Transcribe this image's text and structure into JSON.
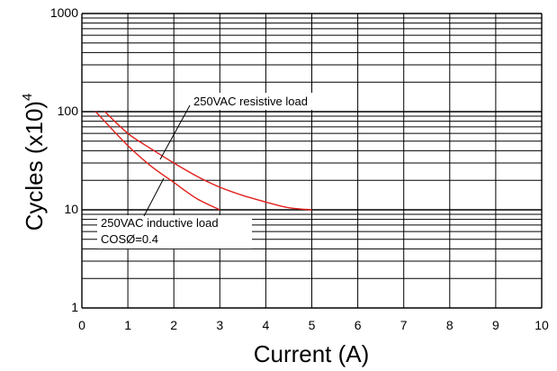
{
  "chart_data": {
    "type": "line",
    "title": "",
    "xlabel": "Current (A)",
    "ylabel_main": "Cycles (x10)",
    "ylabel_exp": "4",
    "xlim": [
      0,
      10
    ],
    "ylim": [
      1,
      1000
    ],
    "yscale": "log",
    "grid": true,
    "x_ticks": [
      "0",
      "1",
      "2",
      "3",
      "4",
      "5",
      "6",
      "7",
      "8",
      "9",
      "10"
    ],
    "y_ticks": [
      "1",
      "10",
      "100",
      "1000"
    ],
    "line_color": "#e0201c",
    "series": [
      {
        "name": "250VAC resistive load",
        "x": [
          0.5,
          1,
          1.5,
          2,
          2.5,
          3,
          3.5,
          4,
          4.5,
          5
        ],
        "y": [
          100,
          60,
          42,
          30,
          22,
          17,
          14,
          12,
          10.5,
          10
        ]
      },
      {
        "name": "250VAC inductive load COSØ=0.4",
        "x": [
          0.3,
          1,
          1.5,
          2,
          2.5,
          3
        ],
        "y": [
          100,
          45,
          28,
          19,
          13,
          10
        ]
      }
    ],
    "annotations": [
      {
        "text": "250VAC resistive load"
      },
      {
        "text": "250VAC inductive load"
      },
      {
        "text": "COSØ=0.4"
      }
    ]
  }
}
